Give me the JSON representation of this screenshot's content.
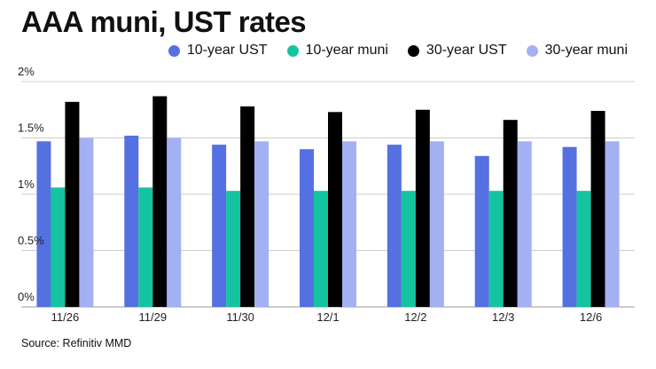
{
  "colors": {
    "ust10": "#5570e0",
    "muni10": "#14c4a0",
    "ust30": "#000000",
    "muni30": "#a3b0f2",
    "grid": "#cccccc"
  },
  "chart_data": {
    "type": "bar",
    "title": "AAA muni, UST rates",
    "xlabel": "",
    "ylabel": "",
    "categories": [
      "11/26",
      "11/29",
      "11/30",
      "12/1",
      "12/2",
      "12/3",
      "12/6"
    ],
    "series": [
      {
        "name": "10-year UST",
        "color_key": "ust10",
        "values": [
          1.47,
          1.52,
          1.44,
          1.4,
          1.44,
          1.34,
          1.42
        ]
      },
      {
        "name": "10-year muni",
        "color_key": "muni10",
        "values": [
          1.06,
          1.06,
          1.03,
          1.03,
          1.03,
          1.03,
          1.03
        ]
      },
      {
        "name": "30-year UST",
        "color_key": "ust30",
        "values": [
          1.82,
          1.87,
          1.78,
          1.73,
          1.75,
          1.66,
          1.74
        ]
      },
      {
        "name": "30-year muni",
        "color_key": "muni30",
        "values": [
          1.5,
          1.5,
          1.47,
          1.47,
          1.47,
          1.47,
          1.47
        ]
      }
    ],
    "yticks": [
      {
        "value": 0,
        "label": "0%"
      },
      {
        "value": 0.5,
        "label": "0.5%"
      },
      {
        "value": 1,
        "label": "1%"
      },
      {
        "value": 1.5,
        "label": "1.5%"
      },
      {
        "value": 2,
        "label": "2%"
      }
    ],
    "ylim": [
      0,
      2
    ],
    "grid": true,
    "legend_position": "top-right"
  },
  "source": "Source: Refinitiv MMD"
}
